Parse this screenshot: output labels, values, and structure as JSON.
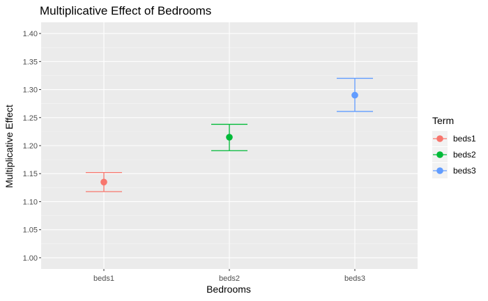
{
  "chart_data": {
    "type": "errorbar",
    "title": "Multiplicative Effect of Bedrooms",
    "xlabel": "Bedrooms",
    "ylabel": "Multiplicative Effect",
    "categories": [
      "beds1",
      "beds2",
      "beds3"
    ],
    "ylim": [
      0.98,
      1.42
    ],
    "y_ticks": [
      "1.00",
      "1.05",
      "1.10",
      "1.15",
      "1.20",
      "1.25",
      "1.30",
      "1.35",
      "1.40"
    ],
    "grid": true,
    "legend": {
      "title": "Term",
      "position": "right"
    },
    "series": [
      {
        "name": "beds1",
        "color": "#F8766D",
        "estimate": 1.135,
        "lower": 1.118,
        "upper": 1.152
      },
      {
        "name": "beds2",
        "color": "#00BA38",
        "estimate": 1.215,
        "lower": 1.191,
        "upper": 1.238
      },
      {
        "name": "beds3",
        "color": "#619CFF",
        "estimate": 1.29,
        "lower": 1.261,
        "upper": 1.32
      }
    ]
  }
}
